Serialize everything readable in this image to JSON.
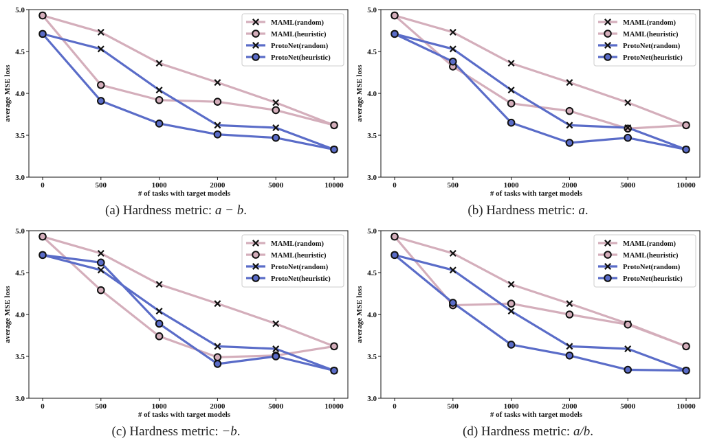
{
  "chart_data": [
    {
      "type": "line",
      "caption_prefix": "(a) Hardness metric: ",
      "caption_math": "a − b",
      "caption_suffix": ".",
      "xlabel": "# of tasks with target models",
      "ylabel": "average MSE loss",
      "categories": [
        "0",
        "500",
        "1000",
        "2000",
        "5000",
        "10000"
      ],
      "ylim": [
        3.0,
        5.0
      ],
      "yticks": [
        "3.0",
        "3.5",
        "4.0",
        "4.5",
        "5.0"
      ],
      "legend_position": "top-right",
      "series": [
        {
          "name": "MAML(random)",
          "color": "#d4aebb",
          "marker": "x",
          "values": [
            4.93,
            4.73,
            4.36,
            4.13,
            3.89,
            3.62
          ]
        },
        {
          "name": "MAML(heuristic)",
          "color": "#d4aebb",
          "marker": "o",
          "values": [
            4.93,
            4.1,
            3.92,
            3.9,
            3.8,
            3.62
          ]
        },
        {
          "name": "ProtoNet(random)",
          "color": "#5a6cc8",
          "marker": "x",
          "values": [
            4.71,
            4.53,
            4.04,
            3.62,
            3.59,
            3.33
          ]
        },
        {
          "name": "ProtoNet(heuristic)",
          "color": "#5a6cc8",
          "marker": "o",
          "values": [
            4.71,
            3.91,
            3.64,
            3.51,
            3.47,
            3.33
          ]
        }
      ]
    },
    {
      "type": "line",
      "caption_prefix": "(b) Hardness metric: ",
      "caption_math": "a",
      "caption_suffix": ".",
      "xlabel": "# of tasks with target models",
      "ylabel": "average MSE loss",
      "categories": [
        "0",
        "500",
        "1000",
        "2000",
        "5000",
        "10000"
      ],
      "ylim": [
        3.0,
        5.0
      ],
      "yticks": [
        "3.0",
        "3.5",
        "4.0",
        "4.5",
        "5.0"
      ],
      "legend_position": "top-right",
      "series": [
        {
          "name": "MAML(random)",
          "color": "#d4aebb",
          "marker": "x",
          "values": [
            4.93,
            4.73,
            4.36,
            4.13,
            3.89,
            3.62
          ]
        },
        {
          "name": "MAML(heuristic)",
          "color": "#d4aebb",
          "marker": "o",
          "values": [
            4.93,
            4.32,
            3.88,
            3.79,
            3.58,
            3.62
          ]
        },
        {
          "name": "ProtoNet(random)",
          "color": "#5a6cc8",
          "marker": "x",
          "values": [
            4.71,
            4.53,
            4.04,
            3.62,
            3.59,
            3.33
          ]
        },
        {
          "name": "ProtoNet(heuristic)",
          "color": "#5a6cc8",
          "marker": "o",
          "values": [
            4.71,
            4.38,
            3.65,
            3.41,
            3.47,
            3.33
          ]
        }
      ]
    },
    {
      "type": "line",
      "caption_prefix": "(c) Hardness metric: ",
      "caption_math": "−b",
      "caption_suffix": ".",
      "xlabel": "# of tasks with target models",
      "ylabel": "average MSE loss",
      "categories": [
        "0",
        "500",
        "1000",
        "2000",
        "5000",
        "10000"
      ],
      "ylim": [
        3.0,
        5.0
      ],
      "yticks": [
        "3.0",
        "3.5",
        "4.0",
        "4.5",
        "5.0"
      ],
      "legend_position": "top-right",
      "series": [
        {
          "name": "MAML(random)",
          "color": "#d4aebb",
          "marker": "x",
          "values": [
            4.93,
            4.73,
            4.36,
            4.13,
            3.89,
            3.62
          ]
        },
        {
          "name": "MAML(heuristic)",
          "color": "#d4aebb",
          "marker": "o",
          "values": [
            4.93,
            4.29,
            3.74,
            3.49,
            3.51,
            3.62
          ]
        },
        {
          "name": "ProtoNet(random)",
          "color": "#5a6cc8",
          "marker": "x",
          "values": [
            4.71,
            4.53,
            4.04,
            3.62,
            3.59,
            3.33
          ]
        },
        {
          "name": "ProtoNet(heuristic)",
          "color": "#5a6cc8",
          "marker": "o",
          "values": [
            4.71,
            4.62,
            3.89,
            3.41,
            3.5,
            3.33
          ]
        }
      ]
    },
    {
      "type": "line",
      "caption_prefix": "(d) Hardness metric: ",
      "caption_math": "a/b",
      "caption_suffix": ".",
      "xlabel": "# of tasks with target models",
      "ylabel": "average MSE loss",
      "categories": [
        "0",
        "500",
        "1000",
        "2000",
        "5000",
        "10000"
      ],
      "ylim": [
        3.0,
        5.0
      ],
      "yticks": [
        "3.0",
        "3.5",
        "4.0",
        "4.5",
        "5.0"
      ],
      "legend_position": "top-right",
      "series": [
        {
          "name": "MAML(random)",
          "color": "#d4aebb",
          "marker": "x",
          "values": [
            4.93,
            4.73,
            4.36,
            4.13,
            3.89,
            3.62
          ]
        },
        {
          "name": "MAML(heuristic)",
          "color": "#d4aebb",
          "marker": "o",
          "values": [
            4.93,
            4.11,
            4.13,
            4.0,
            3.88,
            3.62
          ]
        },
        {
          "name": "ProtoNet(random)",
          "color": "#5a6cc8",
          "marker": "x",
          "values": [
            4.71,
            4.53,
            4.04,
            3.62,
            3.59,
            3.33
          ]
        },
        {
          "name": "ProtoNet(heuristic)",
          "color": "#5a6cc8",
          "marker": "o",
          "values": [
            4.71,
            4.14,
            3.64,
            3.51,
            3.34,
            3.33
          ]
        }
      ]
    }
  ]
}
